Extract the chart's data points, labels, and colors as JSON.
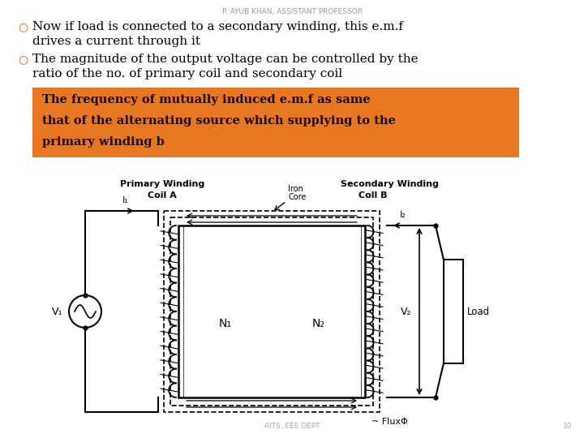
{
  "background_color": "#ffffff",
  "header_text": "P. AYUB KHAN, ASSISTANT PROFESSOR",
  "header_fontsize": 6.5,
  "header_color": "#999999",
  "bullet_color": "#cc6600",
  "bullet_text_1a": "Now if load is connected to a secondary winding, this e.m.f",
  "bullet_text_1b": "drives a current through it",
  "bullet_text_2a": "The magnitude of the output voltage can be controlled by the",
  "bullet_text_2b": "ratio of the no. of primary coil and secondary coil",
  "highlight_box_color": "#e87722",
  "highlight_text_line1": "The frequency of mutually induced e.m.f as same",
  "highlight_text_line2": "that of the alternating source which supplying to the",
  "highlight_text_line3": "primary winding b",
  "highlight_fontsize": 10.5,
  "footer_text": "AITS, EEE DEPT",
  "footer_page": "10",
  "footer_fontsize": 6.5,
  "diagram_label_primary": "Primary Winding",
  "diagram_label_coilA": "Coil A",
  "diagram_label_iron": "Iron",
  "diagram_label_core": "Core",
  "diagram_label_secondary": "Secondary Winding",
  "diagram_label_coilB": "Coll B",
  "diagram_label_N1": "N₁",
  "diagram_label_N2": "N₂",
  "diagram_label_V1": "V₁",
  "diagram_label_V2": "V₂",
  "diagram_label_I1": "I₁",
  "diagram_label_I2": "I₂",
  "diagram_label_flux": "FluxΦ",
  "diagram_label_load": "Load"
}
